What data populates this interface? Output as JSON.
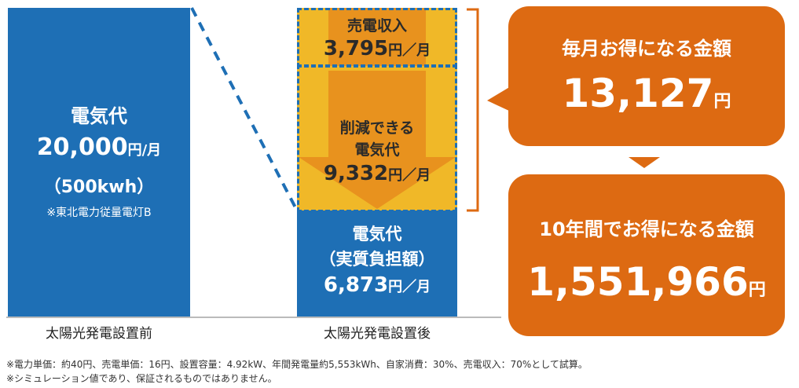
{
  "chart_data": {
    "type": "bar",
    "categories": [
      "太陽光発電設置前",
      "太陽光発電設置後"
    ],
    "before": {
      "title": "電気代",
      "value": 20000,
      "value_text": "20,000",
      "unit": "円/月",
      "usage": "（500kwh）",
      "note": "※東北電力従量電灯B"
    },
    "after": {
      "segments": [
        {
          "name": "売電収入",
          "value": 3795,
          "value_text": "3,795",
          "unit": "円／月"
        },
        {
          "name_line1": "削減できる",
          "name_line2": "電気代",
          "value": 9332,
          "value_text": "9,332",
          "unit": "円／月"
        },
        {
          "name_line1": "電気代",
          "name_line2": "（実質負担額）",
          "value": 6873,
          "value_text": "6,873",
          "unit": "円／月"
        }
      ]
    },
    "monthly": {
      "label": "毎月お得になる金額",
      "value": 13127,
      "value_text": "13,127",
      "unit": "円"
    },
    "ten_year": {
      "label": "10年間でお得になる金額",
      "value": 1551966,
      "value_text": "1,551,966",
      "unit": "円"
    },
    "colors": {
      "blue": "#1e6fb5",
      "orange": "#dd6a12",
      "yellow": "#f0b828",
      "arrow": "#e8921e",
      "dash": "#1e6fb5"
    }
  },
  "footnotes": [
    "※電力単価：約40円、売電単価：16円、設置容量：4.92kW、年間発電量約5,553kWh、自家消費：30%、売電収入：70%として試算。",
    "※シミュレーション値であり、保証されるものではありません。"
  ]
}
